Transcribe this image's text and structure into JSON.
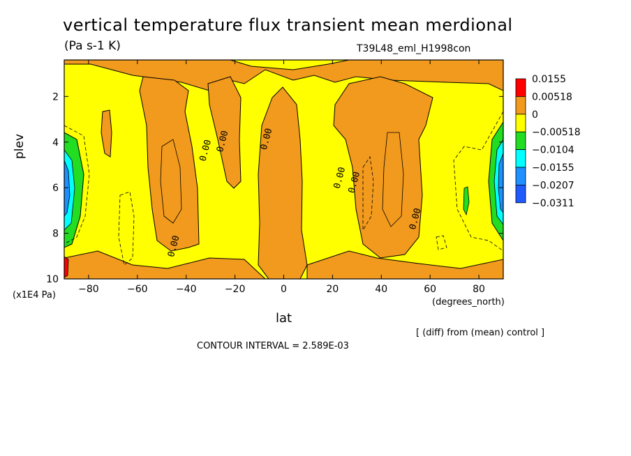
{
  "chart_data": {
    "type": "contour",
    "title": "vertical temperature flux transient mean merdional",
    "units_label": "(Pa s-1 K)",
    "run_label": "T39L48_eml_H1998con",
    "xlabel": "lat",
    "x_units": "(degrees_north)",
    "ylabel": "plev",
    "y_units": "(x1E4 Pa)",
    "note_diff": "[ (diff) from (mean) control ]",
    "contour_interval": "CONTOUR INTERVAL = 2.589E-03",
    "xlim": [
      -90,
      90
    ],
    "ylim": [
      10,
      0.4
    ],
    "x_ticks": [
      -80,
      -60,
      -40,
      -20,
      0,
      20,
      40,
      60,
      80
    ],
    "y_ticks": [
      2,
      4,
      6,
      8,
      10
    ],
    "contour_labels": [
      {
        "text": "0.00",
        "lat": -31,
        "plev": 4.4
      },
      {
        "text": "0.00",
        "lat": -24,
        "plev": 4.0
      },
      {
        "text": "0.00",
        "lat": -6,
        "plev": 3.9
      },
      {
        "text": "0.00",
        "lat": 24,
        "plev": 5.6
      },
      {
        "text": "0.00",
        "lat": 30,
        "plev": 5.8
      },
      {
        "text": "0.00",
        "lat": 55,
        "plev": 7.4
      },
      {
        "text": "0.00",
        "lat": -44,
        "plev": 8.6
      }
    ],
    "legend": {
      "levels": [
        "0.0155",
        "0.00518",
        "0",
        "−0.00518",
        "−0.0104",
        "−0.0155",
        "−0.0207",
        "−0.0311"
      ],
      "colors": [
        "#ff0000",
        "#f29a1d",
        "#ffff00",
        "#22dd22",
        "#00ffff",
        "#1e90ff",
        "#1f5aff"
      ]
    },
    "colors": {
      "positive": "#f29a1d",
      "near_zero": "#ffff00",
      "negative_1": "#22dd22",
      "negative_2": "#00ffff",
      "negative_3": "#1e90ff",
      "negative_4": "#1f5aff",
      "max": "#ff0000"
    }
  }
}
